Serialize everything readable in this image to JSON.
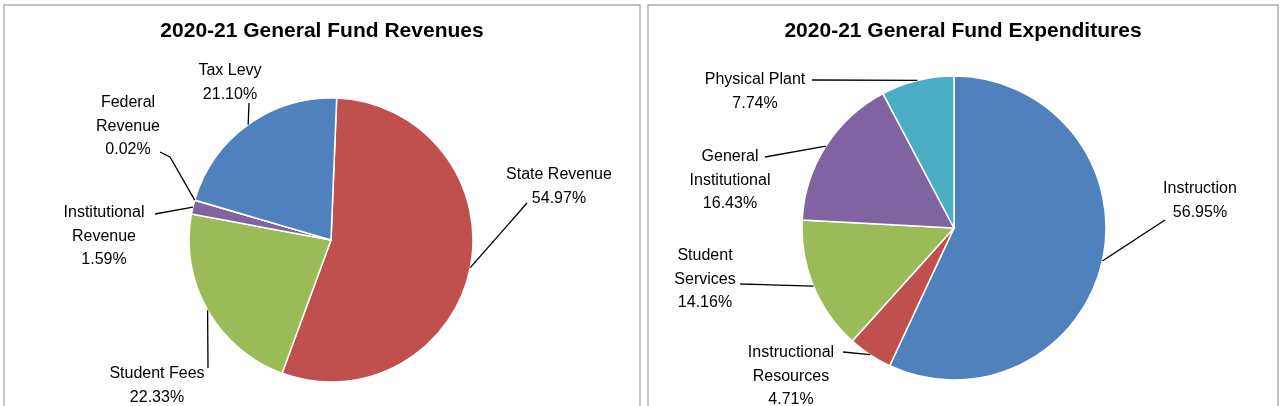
{
  "chart_data": [
    {
      "type": "pie",
      "title": "2020-21 General Fund Revenues",
      "categories": [
        "State Revenue",
        "Student Fees",
        "Institutional Revenue",
        "Federal Revenue",
        "Tax Levy"
      ],
      "values": [
        54.97,
        22.33,
        1.59,
        0.02,
        21.1
      ],
      "value_labels": [
        "54.97%",
        "22.33%",
        "1.59%",
        "0.02%",
        "21.10%"
      ],
      "colors": [
        "#c0504d",
        "#9bbb59",
        "#8064a2",
        "#4bacc6",
        "#4f81bd"
      ]
    },
    {
      "type": "pie",
      "title": "2020-21 General Fund Expenditures",
      "categories": [
        "Instruction",
        "Instructional Resources",
        "Student Services",
        "General Institutional",
        "Physical Plant"
      ],
      "values": [
        56.95,
        4.71,
        14.16,
        16.43,
        7.74
      ],
      "value_labels": [
        "56.95%",
        "4.71%",
        "14.16%",
        "16.43%",
        "7.74%"
      ],
      "colors": [
        "#4f81bd",
        "#c0504d",
        "#9bbb59",
        "#8064a2",
        "#4bacc6"
      ]
    }
  ]
}
